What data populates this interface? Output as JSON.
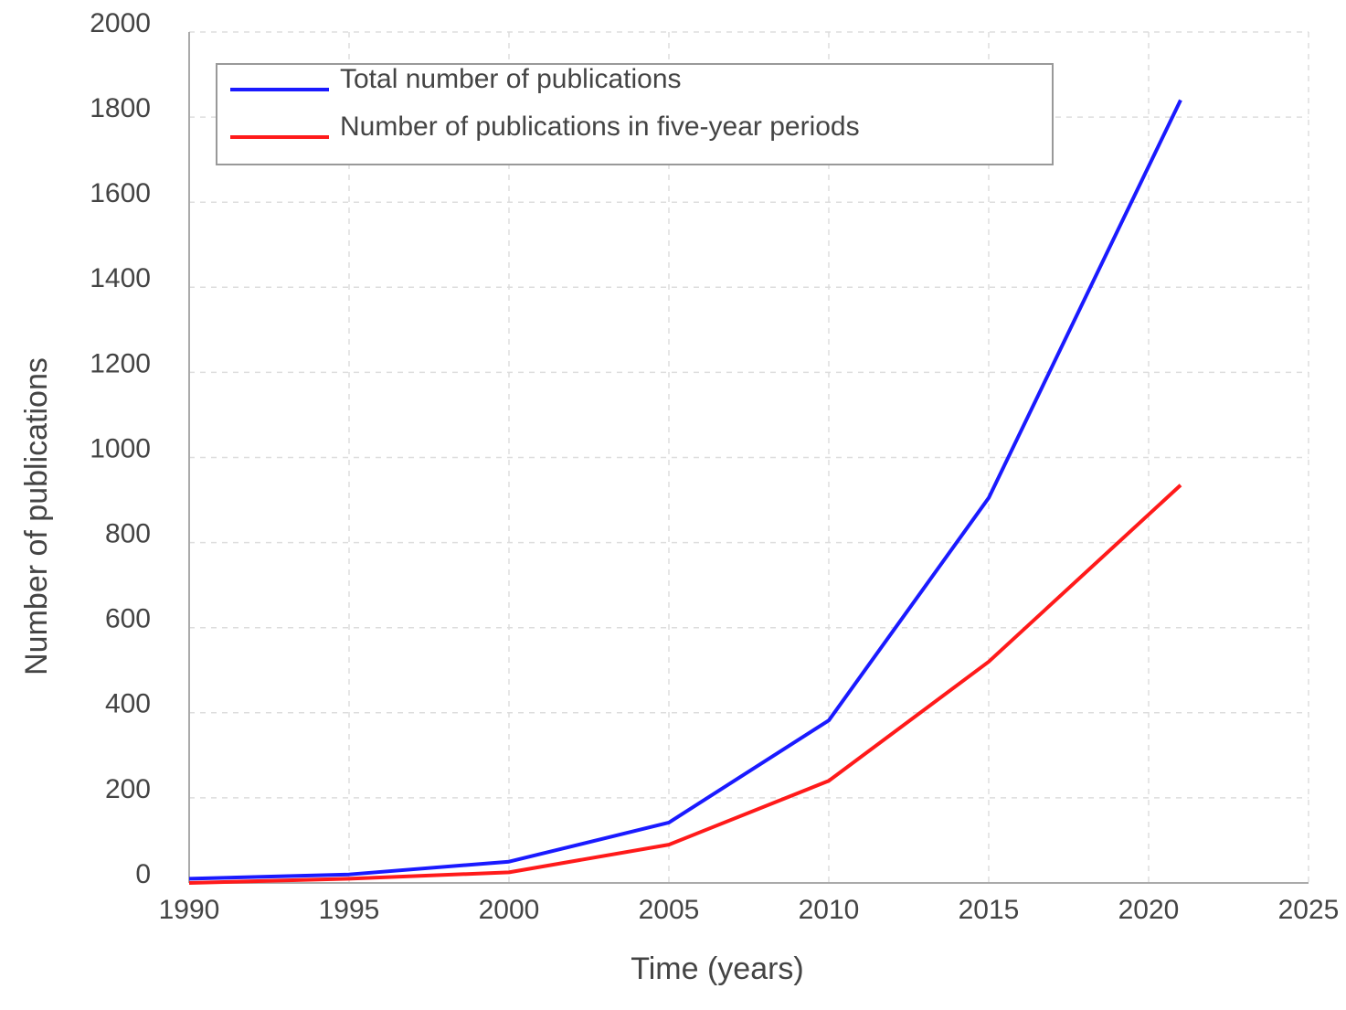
{
  "chart_data": {
    "type": "line",
    "x_label": "Time (years)",
    "y_label": "Number of publications",
    "x": [
      1990,
      1995,
      2000,
      2005,
      2010,
      2015,
      2021
    ],
    "series": [
      {
        "name": "Total number of publications",
        "color": "#1a1aff",
        "values": [
          10,
          20,
          50,
          142,
          382,
          905,
          1840
        ]
      },
      {
        "name": "Number of publications in five-year periods",
        "color": "#ff1a1a",
        "values": [
          0,
          10,
          25,
          90,
          240,
          520,
          935
        ]
      }
    ],
    "xlim": [
      1990,
      2025
    ],
    "xticks": [
      1990,
      1995,
      2000,
      2005,
      2010,
      2015,
      2020,
      2025
    ],
    "ylim": [
      0,
      2000
    ],
    "yticks": [
      0,
      200,
      400,
      600,
      800,
      1000,
      1200,
      1400,
      1600,
      1800,
      2000
    ],
    "grid": true,
    "legend": "upper-left"
  }
}
